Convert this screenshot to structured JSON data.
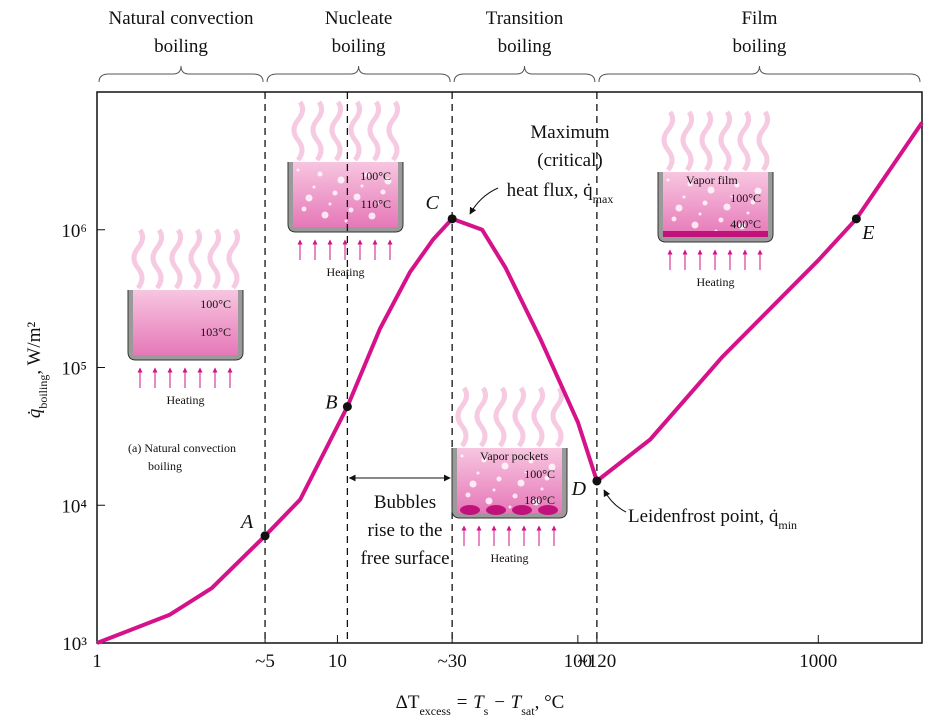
{
  "chart_data": {
    "type": "line",
    "xlog": true,
    "ylog": true,
    "color": "#d6128a",
    "regions": [
      [
        "Natural convection",
        "boiling"
      ],
      [
        "Nucleate",
        "boiling"
      ],
      [
        "Transition",
        "boiling"
      ],
      [
        "Film",
        "boiling"
      ]
    ],
    "x": [
      1,
      2,
      3,
      5,
      7,
      11,
      15,
      20,
      25,
      30,
      40,
      50,
      70,
      100,
      120,
      200,
      400,
      1000,
      1440,
      2700
    ],
    "values": [
      1000,
      1600,
      2500,
      6000,
      11000,
      52000,
      190000,
      490000,
      850000,
      1200000,
      1000000,
      530000,
      160000,
      40000,
      15000,
      30000,
      120000,
      600000,
      1200000,
      6000000
    ],
    "points": [
      {
        "label": "A",
        "x": 5,
        "y": 6000
      },
      {
        "label": "B",
        "x": 11,
        "y": 52000
      },
      {
        "label": "C",
        "x": 30,
        "y": 1200000
      },
      {
        "label": "D",
        "x": 120,
        "y": 15000
      },
      {
        "label": "E",
        "x": 1440,
        "y": 1200000
      }
    ],
    "xlim": [
      1,
      2700
    ],
    "ylim": [
      1000,
      10000000
    ],
    "xticks": [
      1,
      {
        "value": 5,
        "label": "~5"
      },
      10,
      {
        "value": 30,
        "label": "~30"
      },
      100,
      {
        "value": 120,
        "label": "~120"
      },
      1000
    ],
    "yticks": [
      {
        "value": 1000,
        "label": "10³"
      },
      {
        "value": 10000,
        "label": "10⁴"
      },
      {
        "value": 100000,
        "label": "10⁵"
      },
      {
        "value": 1000000,
        "label": "10⁶"
      }
    ],
    "xlabel": [
      "ΔT",
      "excess",
      " = T",
      "s",
      " − T",
      "sat",
      ", °C"
    ],
    "ylabel": [
      "q̇",
      "boiling",
      ", W/m²"
    ],
    "annotations": {
      "max": [
        "Maximum",
        "(critical)",
        "heat flux, q̇",
        "max"
      ],
      "leidenfrost": [
        "Leidenfrost point, q̇",
        "min"
      ],
      "bubbles": [
        "Bubbles",
        "rise to the",
        "free surface"
      ],
      "caption": [
        "(a) Natural convection",
        "boiling"
      ]
    },
    "pans": [
      {
        "top": "100°C",
        "bottom": "103°C",
        "caption": "Heating"
      },
      {
        "top": "100°C",
        "bottom": "110°C",
        "caption": "Heating"
      },
      {
        "top": "100°C",
        "bottom": "180°C",
        "film": "Vapor pockets",
        "caption": "Heating"
      },
      {
        "top": "100°C",
        "bottom": "400°C",
        "film": "Vapor film",
        "caption": "Heating"
      }
    ]
  }
}
